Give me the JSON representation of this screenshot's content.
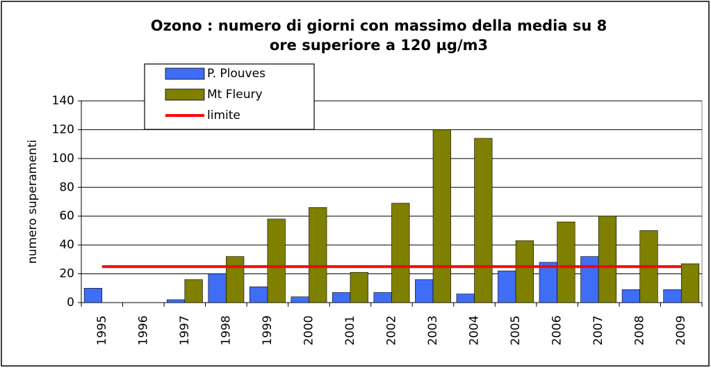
{
  "chart_data": {
    "type": "bar",
    "title": [
      "Ozono : numero di giorni con massimo della media su 8",
      "ore superiore a 120 µg/m3"
    ],
    "y_label": "numero superamenti",
    "categories": [
      "1995",
      "1996",
      "1997",
      "1998",
      "1999",
      "2000",
      "2001",
      "2002",
      "2003",
      "2004",
      "2005",
      "2006",
      "2007",
      "2008",
      "2009"
    ],
    "series": [
      {
        "name": "P. Plouves",
        "color": "#3f6df5",
        "type": "bar",
        "values": [
          10,
          null,
          2,
          20,
          11,
          4,
          7,
          7,
          16,
          6,
          22,
          28,
          32,
          9,
          9
        ]
      },
      {
        "name": "Mt Fleury",
        "color": "#7f7f00",
        "type": "bar",
        "values": [
          null,
          null,
          16,
          32,
          58,
          66,
          21,
          69,
          120,
          114,
          43,
          56,
          60,
          50,
          27
        ]
      },
      {
        "name": "limite",
        "color": "#ff0000",
        "type": "line",
        "values": [
          25,
          25,
          25,
          25,
          25,
          25,
          25,
          25,
          25,
          25,
          25,
          25,
          25,
          25,
          25
        ]
      }
    ],
    "ylim": [
      0,
      140
    ],
    "yticks": [
      0,
      20,
      40,
      60,
      80,
      100,
      120,
      140
    ],
    "grid": true
  }
}
